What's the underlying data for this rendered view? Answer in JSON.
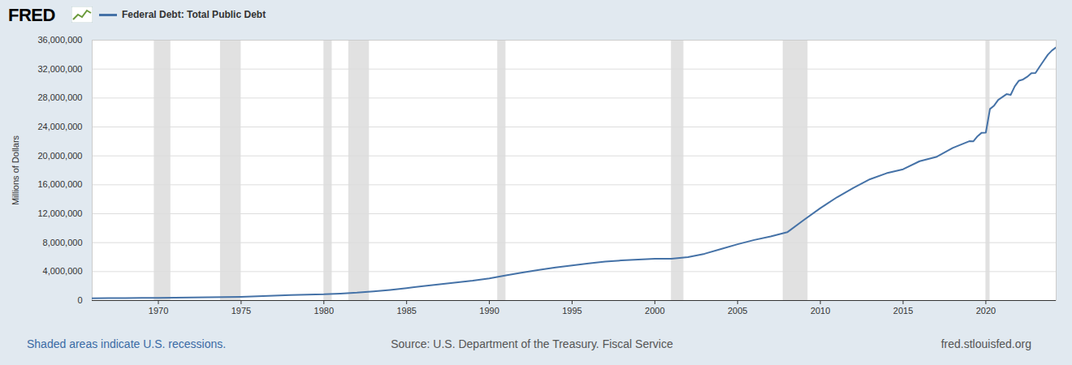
{
  "chart_data": {
    "type": "line",
    "logo": "FRED",
    "title": "Federal Debt: Total Public Debt",
    "ylabel": "Millions of Dollars",
    "notes": [
      "Shaded areas indicate U.S. recessions."
    ],
    "source": "Source: U.S. Department of the Treasury. Fiscal Service",
    "url": "fred.stlouisfed.org",
    "color": "#4572a7",
    "grid": true,
    "x": [
      1966,
      1967,
      1968,
      1969,
      1970,
      1971,
      1972,
      1973,
      1974,
      1975,
      1976,
      1977,
      1978,
      1979,
      1980,
      1981,
      1982,
      1983,
      1984,
      1985,
      1986,
      1987,
      1988,
      1989,
      1990,
      1991,
      1992,
      1993,
      1994,
      1995,
      1996,
      1997,
      1998,
      1999,
      2000,
      2001,
      2002,
      2003,
      2004,
      2005,
      2006,
      2007,
      2008,
      2009,
      2010,
      2011,
      2012,
      2013,
      2014,
      2015,
      2016,
      2017,
      2018,
      2019,
      2019.25,
      2019.5,
      2019.75,
      2020,
      2020.25,
      2020.5,
      2020.75,
      2021,
      2021.25,
      2021.5,
      2021.75,
      2022,
      2022.25,
      2022.5,
      2022.75,
      2023,
      2023.25,
      2023.5,
      2023.75,
      2024,
      2024.25
    ],
    "values": [
      320000,
      330000,
      345000,
      360000,
      372000,
      398000,
      428000,
      458000,
      474000,
      512000,
      600000,
      680000,
      760000,
      820000,
      860000,
      965000,
      1080000,
      1250000,
      1460000,
      1710000,
      2000000,
      2250000,
      2490000,
      2740000,
      3050000,
      3470000,
      3880000,
      4230000,
      4580000,
      4860000,
      5120000,
      5380000,
      5540000,
      5650000,
      5770000,
      5770000,
      5990000,
      6460000,
      7130000,
      7780000,
      8370000,
      8850000,
      9440000,
      11130000,
      12770000,
      14270000,
      15580000,
      16770000,
      17600000,
      18150000,
      19260000,
      19850000,
      21090000,
      22030000,
      22020000,
      22720000,
      23200000,
      23220000,
      26480000,
      26950000,
      27750000,
      28130000,
      28530000,
      28430000,
      29620000,
      30400000,
      30570000,
      30930000,
      31420000,
      31460000,
      32330000,
      33170000,
      34000000,
      34590000,
      35000000
    ],
    "xlim": [
      1966,
      2024.25
    ],
    "xticks": [
      1970,
      1975,
      1980,
      1985,
      1990,
      1995,
      2000,
      2005,
      2010,
      2015,
      2020
    ],
    "ylim": [
      0,
      36000000
    ],
    "yticks": [
      0,
      {
        "value": 4000000,
        "label": "4,000,000"
      },
      {
        "value": 8000000,
        "label": "8,000,000"
      },
      {
        "value": 12000000,
        "label": "12,000,000"
      },
      {
        "value": 16000000,
        "label": "16,000,000"
      },
      {
        "value": 20000000,
        "label": "20,000,000"
      },
      {
        "value": 24000000,
        "label": "24,000,000"
      },
      {
        "value": 28000000,
        "label": "28,000,000"
      },
      {
        "value": 32000000,
        "label": "32,000,000"
      },
      {
        "value": 36000000,
        "label": "36,000,000"
      }
    ],
    "recessions": [
      {
        "start": 1969.75,
        "end": 1970.75
      },
      {
        "start": 1973.75,
        "end": 1975.0
      },
      {
        "start": 1980.0,
        "end": 1980.5
      },
      {
        "start": 1981.5,
        "end": 1982.75
      },
      {
        "start": 1990.5,
        "end": 1991.0
      },
      {
        "start": 2001.0,
        "end": 2001.75
      },
      {
        "start": 2007.75,
        "end": 2009.25
      },
      {
        "start": 2020.0,
        "end": 2020.25
      }
    ]
  }
}
